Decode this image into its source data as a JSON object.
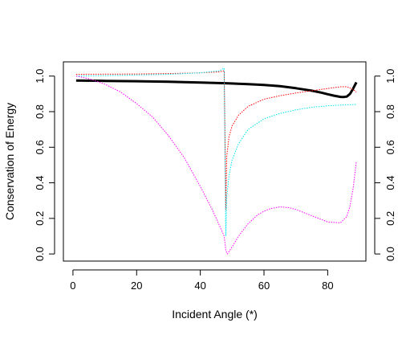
{
  "chart_data": {
    "type": "line",
    "xlabel": "Incident Angle (*)",
    "ylabel": "Conservation of Energy",
    "xlim": [
      -3,
      92
    ],
    "ylim": [
      -0.04,
      1.08
    ],
    "x_ticks": [
      0,
      20,
      40,
      60,
      80
    ],
    "y_ticks": [
      0.0,
      0.2,
      0.4,
      0.6,
      0.8,
      1.0
    ],
    "x_tick_labels": [
      "0",
      "20",
      "40",
      "60",
      "80"
    ],
    "y_tick_labels": [
      "0.0",
      "0.2",
      "0.4",
      "0.6",
      "0.8",
      "1.0"
    ],
    "y_tick_labels_right": [
      "0.0",
      "0.2",
      "0.4",
      "0.6",
      "0.8",
      "1.0"
    ],
    "grid": false,
    "legend": "none",
    "series": [
      {
        "color": "#000000",
        "style": "solid-thick",
        "x": [
          1,
          10,
          20,
          30,
          40,
          48,
          55,
          60,
          65,
          70,
          75,
          78,
          80,
          82,
          84,
          85,
          86,
          87,
          88,
          89
        ],
        "y": [
          0.975,
          0.973,
          0.971,
          0.968,
          0.964,
          0.96,
          0.955,
          0.95,
          0.943,
          0.932,
          0.918,
          0.907,
          0.898,
          0.89,
          0.883,
          0.882,
          0.885,
          0.9,
          0.93,
          0.965
        ]
      },
      {
        "color": "#ff0000",
        "style": "dotted",
        "x": [
          1,
          10,
          20,
          30,
          40,
          46,
          47.5,
          48,
          48.3,
          49,
          50,
          52,
          55,
          60,
          65,
          70,
          75,
          80,
          84,
          86,
          88,
          89
        ],
        "y": [
          1.01,
          1.011,
          1.012,
          1.014,
          1.018,
          1.024,
          1.03,
          0.25,
          0.55,
          0.66,
          0.72,
          0.78,
          0.83,
          0.87,
          0.89,
          0.905,
          0.918,
          0.93,
          0.94,
          0.94,
          0.925,
          0.91
        ]
      },
      {
        "color": "#00e5ee",
        "style": "dotted",
        "x": [
          1,
          10,
          20,
          30,
          40,
          46,
          47.5,
          48,
          48.3,
          49,
          50,
          52,
          55,
          60,
          65,
          70,
          75,
          80,
          85,
          89
        ],
        "y": [
          1.0,
          1.003,
          1.006,
          1.01,
          1.018,
          1.03,
          1.045,
          0.1,
          0.32,
          0.44,
          0.53,
          0.62,
          0.7,
          0.76,
          0.79,
          0.81,
          0.825,
          0.833,
          0.838,
          0.84
        ]
      },
      {
        "color": "#ff00ff",
        "style": "dotted",
        "x": [
          1,
          5,
          10,
          15,
          20,
          25,
          30,
          35,
          40,
          44,
          46,
          47.5,
          48,
          48.5,
          50,
          52,
          55,
          58,
          60,
          62,
          65,
          68,
          70,
          75,
          80,
          84,
          86,
          87,
          88,
          89
        ],
        "y": [
          1.0,
          0.985,
          0.955,
          0.91,
          0.845,
          0.77,
          0.665,
          0.54,
          0.38,
          0.24,
          0.16,
          0.1,
          0.02,
          0.0,
          0.04,
          0.1,
          0.17,
          0.22,
          0.24,
          0.255,
          0.265,
          0.26,
          0.25,
          0.215,
          0.18,
          0.175,
          0.21,
          0.27,
          0.37,
          0.52
        ]
      }
    ]
  }
}
